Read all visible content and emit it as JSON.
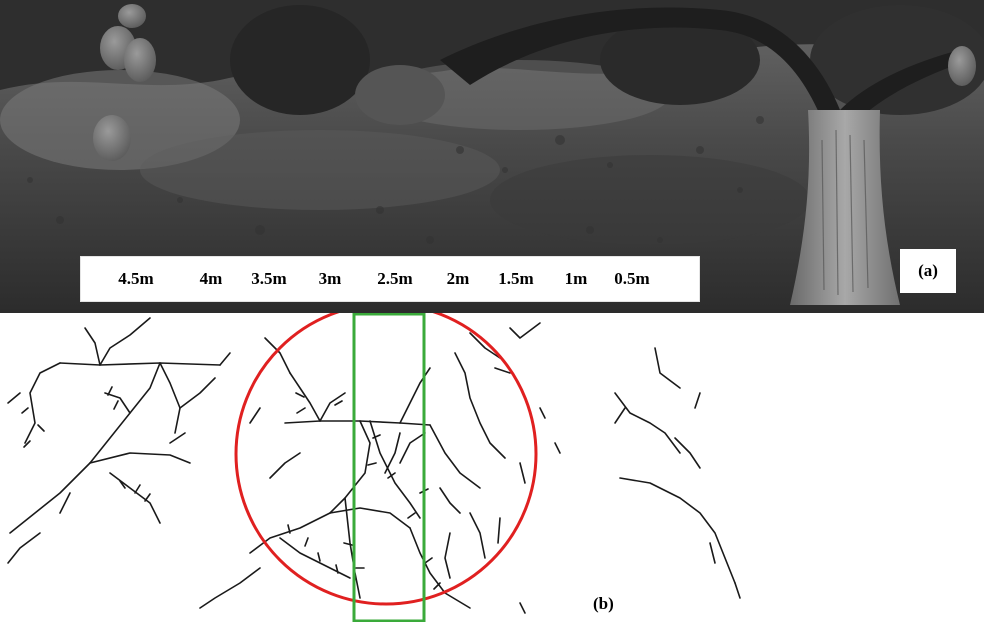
{
  "panel_a": {
    "scale_labels": [
      "4.5m",
      "4m",
      "3.5m",
      "3m",
      "2.5m",
      "2m",
      "1.5m",
      "1m",
      "0.5m"
    ],
    "panel_label": "(a)"
  },
  "panel_b": {
    "panel_label": "(b)"
  },
  "colors": {
    "circle": "#e02020",
    "rectangle": "#3aaa3a",
    "edges": "#1a1a1a"
  }
}
